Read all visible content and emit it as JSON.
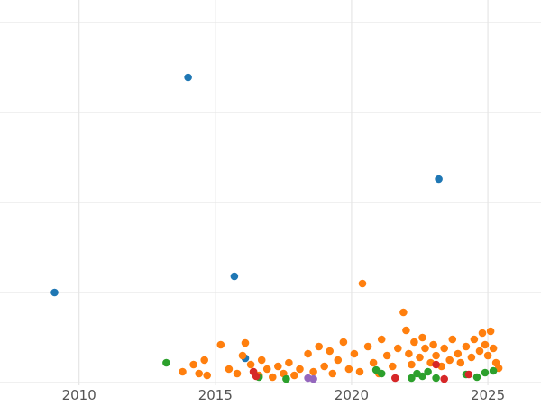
{
  "figure": {
    "background": "#ffffff",
    "grid_color": "#e6e6e6",
    "tick_color": "#555555",
    "tick_font_size": 15
  },
  "chart_data": {
    "type": "scatter",
    "title": "",
    "xlabel": "",
    "ylabel": "",
    "grid": true,
    "legend": null,
    "xlim": [
      2007.1,
      2026.95
    ],
    "ylim": [
      -0.25,
      4.25
    ],
    "x_ticks": [
      2010,
      2015,
      2020,
      2025
    ],
    "x_tick_labels": [
      "2010",
      "2015",
      "2020",
      "2025"
    ],
    "y_gridlines": [
      0,
      1,
      2,
      3,
      4
    ],
    "point_radius": 4.3,
    "series": [
      {
        "name": "series-blue",
        "color": "#1f77b4",
        "points": [
          [
            2009.1,
            1.0
          ],
          [
            2014.0,
            3.39
          ],
          [
            2015.7,
            1.18
          ],
          [
            2023.2,
            2.26
          ],
          [
            2016.1,
            0.27
          ]
        ]
      },
      {
        "name": "series-orange",
        "color": "#ff7f0e",
        "points": [
          [
            2013.8,
            0.12
          ],
          [
            2014.2,
            0.2
          ],
          [
            2014.4,
            0.1
          ],
          [
            2014.6,
            0.25
          ],
          [
            2014.7,
            0.08
          ],
          [
            2015.2,
            0.42
          ],
          [
            2015.5,
            0.15
          ],
          [
            2015.8,
            0.1
          ],
          [
            2016.0,
            0.3
          ],
          [
            2016.1,
            0.44
          ],
          [
            2016.3,
            0.2
          ],
          [
            2016.4,
            0.12
          ],
          [
            2016.6,
            0.08
          ],
          [
            2016.7,
            0.25
          ],
          [
            2016.9,
            0.15
          ],
          [
            2017.1,
            0.06
          ],
          [
            2017.3,
            0.18
          ],
          [
            2017.5,
            0.1
          ],
          [
            2017.7,
            0.22
          ],
          [
            2017.9,
            0.08
          ],
          [
            2018.1,
            0.15
          ],
          [
            2018.4,
            0.32
          ],
          [
            2018.6,
            0.12
          ],
          [
            2018.8,
            0.4
          ],
          [
            2019.0,
            0.18
          ],
          [
            2019.2,
            0.35
          ],
          [
            2019.3,
            0.1
          ],
          [
            2019.5,
            0.25
          ],
          [
            2019.7,
            0.45
          ],
          [
            2019.9,
            0.15
          ],
          [
            2020.1,
            0.32
          ],
          [
            2020.3,
            0.12
          ],
          [
            2020.4,
            1.1
          ],
          [
            2020.6,
            0.4
          ],
          [
            2020.8,
            0.22
          ],
          [
            2021.0,
            0.1
          ],
          [
            2021.1,
            0.48
          ],
          [
            2021.3,
            0.3
          ],
          [
            2021.5,
            0.18
          ],
          [
            2021.7,
            0.38
          ],
          [
            2021.9,
            0.78
          ],
          [
            2022.0,
            0.58
          ],
          [
            2022.1,
            0.32
          ],
          [
            2022.2,
            0.2
          ],
          [
            2022.3,
            0.45
          ],
          [
            2022.5,
            0.28
          ],
          [
            2022.6,
            0.5
          ],
          [
            2022.7,
            0.38
          ],
          [
            2022.9,
            0.22
          ],
          [
            2023.0,
            0.42
          ],
          [
            2023.1,
            0.3
          ],
          [
            2023.3,
            0.18
          ],
          [
            2023.4,
            0.38
          ],
          [
            2023.6,
            0.25
          ],
          [
            2023.7,
            0.48
          ],
          [
            2023.9,
            0.32
          ],
          [
            2024.0,
            0.22
          ],
          [
            2024.2,
            0.4
          ],
          [
            2024.4,
            0.28
          ],
          [
            2024.5,
            0.48
          ],
          [
            2024.7,
            0.35
          ],
          [
            2024.8,
            0.55
          ],
          [
            2024.9,
            0.42
          ],
          [
            2025.0,
            0.3
          ],
          [
            2025.1,
            0.57
          ],
          [
            2025.2,
            0.38
          ],
          [
            2025.3,
            0.22
          ],
          [
            2025.4,
            0.16
          ]
        ]
      },
      {
        "name": "series-green",
        "color": "#2ca02c",
        "points": [
          [
            2013.2,
            0.22
          ],
          [
            2016.6,
            0.06
          ],
          [
            2017.6,
            0.04
          ],
          [
            2020.9,
            0.14
          ],
          [
            2021.1,
            0.1
          ],
          [
            2022.2,
            0.05
          ],
          [
            2022.4,
            0.1
          ],
          [
            2022.6,
            0.07
          ],
          [
            2022.8,
            0.12
          ],
          [
            2023.1,
            0.05
          ],
          [
            2024.2,
            0.09
          ],
          [
            2024.6,
            0.06
          ],
          [
            2024.9,
            0.11
          ],
          [
            2025.2,
            0.13
          ]
        ]
      },
      {
        "name": "series-red",
        "color": "#d62728",
        "points": [
          [
            2016.4,
            0.12
          ],
          [
            2016.5,
            0.07
          ],
          [
            2021.6,
            0.05
          ],
          [
            2023.1,
            0.2
          ],
          [
            2023.4,
            0.04
          ],
          [
            2024.3,
            0.09
          ]
        ]
      },
      {
        "name": "series-purple",
        "color": "#9467bd",
        "points": [
          [
            2018.4,
            0.05
          ],
          [
            2018.6,
            0.04
          ]
        ]
      }
    ]
  }
}
